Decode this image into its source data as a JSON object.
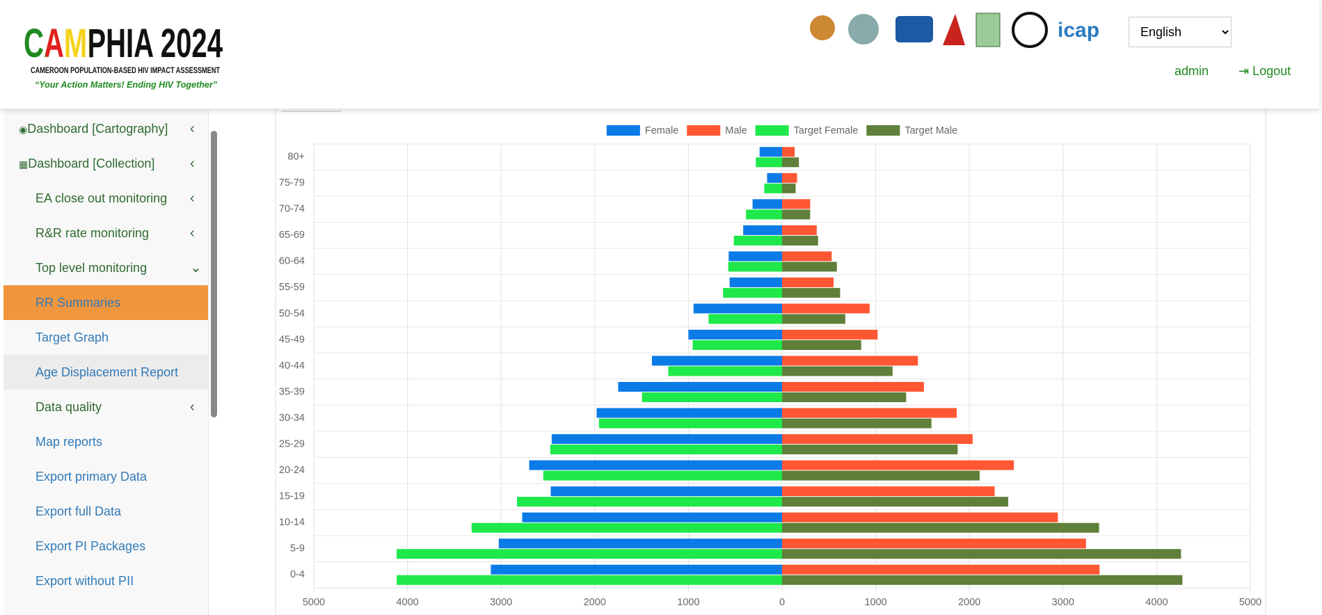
{
  "header": {
    "title": "CAMPHIA 2024",
    "subtitle": "CAMEROON POPULATION-BASED HIV IMPACT ASSESSMENT",
    "tagline": "“Your Action Matters! Ending HIV Together”",
    "language": "English",
    "user": "admin",
    "logout": "Logout"
  },
  "sidebar": {
    "items": [
      "Dashboard [Cartography]",
      "Dashboard [Collection]",
      "EA close out monitoring",
      "R&R rate monitoring",
      "Top level monitoring",
      "RR Summaries",
      "Target Graph",
      "Age Displacement Report",
      "Data quality",
      "Map reports",
      "Export primary Data",
      "Export full Data",
      "Export PI Packages",
      "Export without PII"
    ]
  },
  "chart_data": {
    "type": "bar",
    "orientation": "horizontal",
    "categories": [
      "80+",
      "75-79",
      "70-74",
      "65-69",
      "60-64",
      "55-59",
      "50-54",
      "45-49",
      "40-44",
      "35-39",
      "30-34",
      "25-29",
      "20-24",
      "15-19",
      "10-14",
      "5-9",
      "0-4"
    ],
    "series": [
      {
        "name": "Female",
        "color": "#0b7be8",
        "values": [
          -240,
          -160,
          -315,
          -415,
          -570,
          -560,
          -945,
          -1000,
          -1390,
          -1750,
          -1980,
          -2460,
          -2700,
          -2470,
          -2775,
          -3025,
          -3110
        ]
      },
      {
        "name": "Male",
        "color": "#ff5733",
        "values": [
          135,
          160,
          300,
          370,
          530,
          550,
          935,
          1020,
          1450,
          1515,
          1865,
          2035,
          2475,
          2270,
          2945,
          3245,
          3390
        ]
      },
      {
        "name": "Target Female",
        "color": "#1ee84a",
        "values": [
          -280,
          -190,
          -385,
          -515,
          -575,
          -630,
          -785,
          -955,
          -1215,
          -1495,
          -1955,
          -2475,
          -2550,
          -2830,
          -3315,
          -4115,
          -4115
        ]
      },
      {
        "name": "Target Male",
        "color": "#5f7f3a",
        "values": [
          180,
          145,
          300,
          385,
          585,
          620,
          675,
          845,
          1180,
          1325,
          1595,
          1875,
          2110,
          2415,
          3385,
          4260,
          4275
        ]
      }
    ],
    "xlim": [
      -5000,
      5000
    ],
    "xticks": [
      {
        "value": -5000,
        "label": "5000"
      },
      {
        "value": -4000,
        "label": "4000"
      },
      {
        "value": -3000,
        "label": "3000"
      },
      {
        "value": -2000,
        "label": "2000"
      },
      {
        "value": -1000,
        "label": "1000"
      },
      0,
      1000,
      2000,
      3000,
      4000,
      5000
    ],
    "grid": true,
    "legend": "top"
  }
}
